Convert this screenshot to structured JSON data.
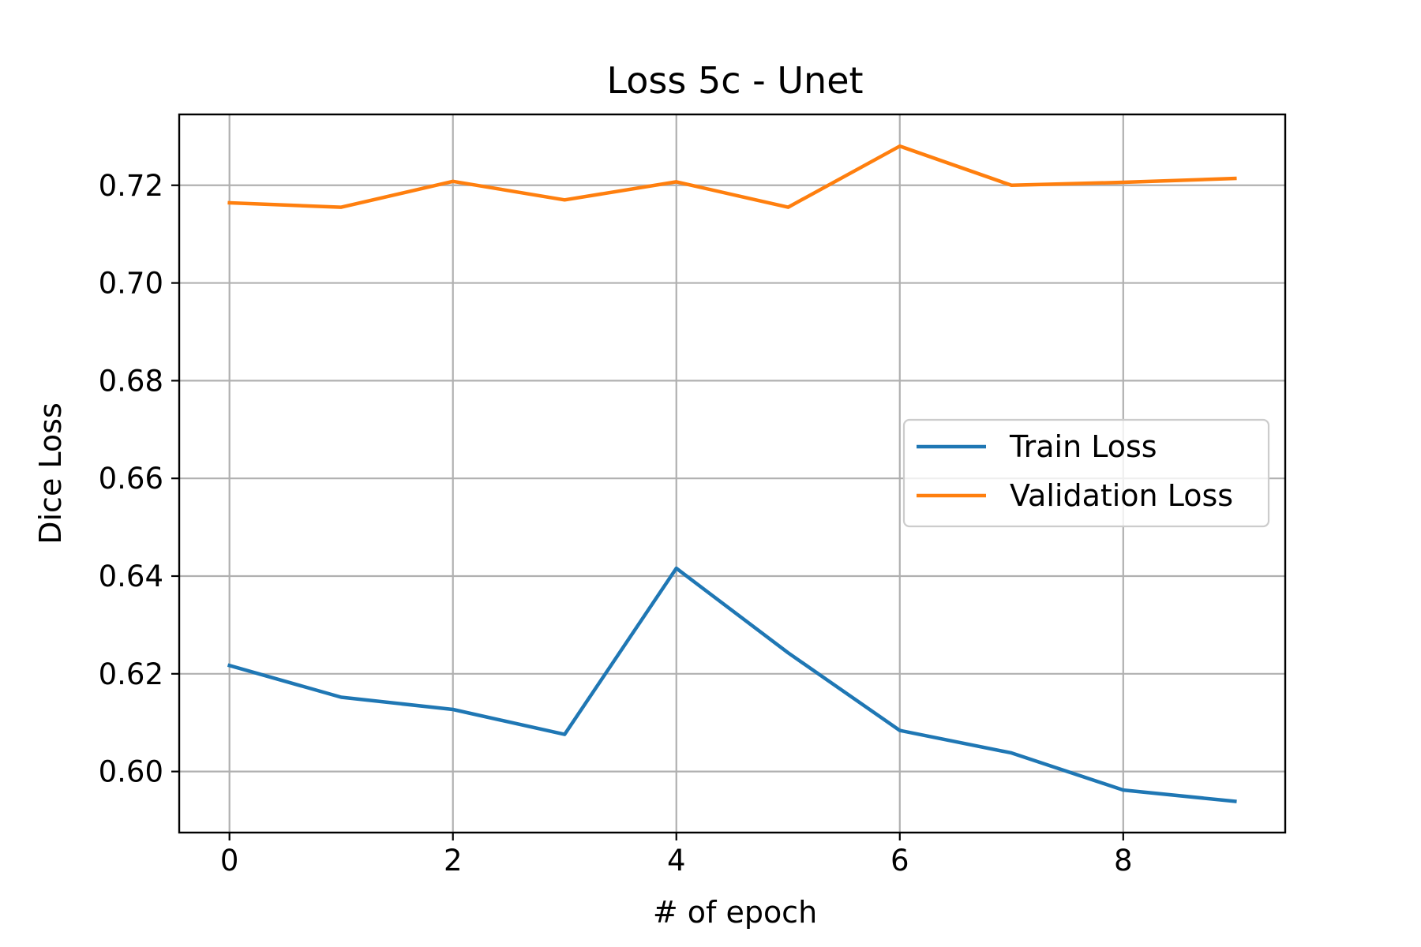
{
  "chart_data": {
    "type": "line",
    "title": "Loss 5c - Unet",
    "xlabel": "# of epoch",
    "ylabel": "Dice Loss",
    "x": [
      0,
      1,
      2,
      3,
      4,
      5,
      6,
      7,
      8,
      9
    ],
    "xlim": [
      -0.45,
      9.45
    ],
    "ylim": [
      0.5875,
      0.7345
    ],
    "xticks": [
      0,
      2,
      4,
      6,
      8
    ],
    "yticks": [
      0.6,
      0.62,
      0.64,
      0.66,
      0.68,
      0.7,
      0.72
    ],
    "ytick_labels": [
      "0.60",
      "0.62",
      "0.64",
      "0.66",
      "0.68",
      "0.70",
      "0.72"
    ],
    "grid": true,
    "legend_position": "center-right",
    "series": [
      {
        "name": "Train Loss",
        "color": "#1f77b4",
        "values": [
          0.6217,
          0.6152,
          0.6127,
          0.6076,
          0.6416,
          0.6243,
          0.6084,
          0.6038,
          0.5962,
          0.5939
        ]
      },
      {
        "name": "Validation Loss",
        "color": "#ff7f0e",
        "values": [
          0.7164,
          0.7155,
          0.7208,
          0.717,
          0.7207,
          0.7155,
          0.728,
          0.72,
          0.7206,
          0.7214
        ]
      }
    ]
  }
}
